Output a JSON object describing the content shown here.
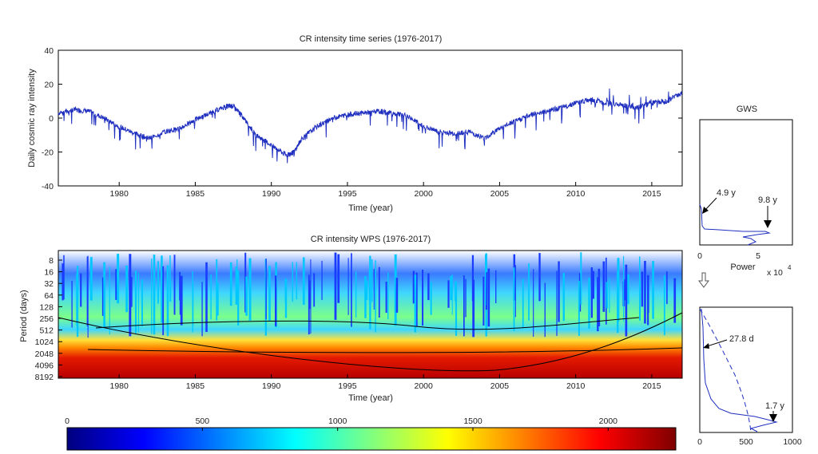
{
  "chart_data": [
    {
      "type": "line",
      "title": "CR intensity time series (1976-2017)",
      "xlabel": "Time (year)",
      "ylabel": "Daily cosmic ray intensity",
      "xlim": [
        1976,
        2017
      ],
      "ylim": [
        -40,
        40
      ],
      "xticks": [
        1980,
        1985,
        1990,
        1995,
        2000,
        2005,
        2010,
        2015
      ],
      "yticks": [
        40,
        20,
        0,
        -20,
        -40
      ],
      "grid": false,
      "color": "#1f2fbf",
      "series": [
        {
          "x": [
            1976,
            1977,
            1978,
            1979,
            1980,
            1981,
            1982,
            1983,
            1984,
            1985,
            1986,
            1987,
            1987.5,
            1988,
            1989,
            1990,
            1991,
            1991.5,
            1992,
            1993,
            1994,
            1995,
            1996,
            1997,
            1998,
            1999,
            2000,
            2001,
            2002,
            2003,
            2004,
            2005,
            2006,
            2007,
            2008,
            2009,
            2010,
            2011,
            2012,
            2013,
            2014,
            2015,
            2016,
            2017
          ],
          "values": [
            3,
            5,
            4,
            0,
            -5,
            -9,
            -12,
            -8,
            -6,
            -1,
            3,
            7,
            7,
            2,
            -10,
            -16,
            -22,
            -20,
            -12,
            -5,
            0,
            2,
            3,
            4,
            3,
            1,
            -5,
            -8,
            -9,
            -8,
            -12,
            -6,
            -2,
            2,
            4,
            6,
            9,
            11,
            9,
            8,
            6,
            9,
            10,
            15
          ]
        }
      ]
    },
    {
      "type": "heatmap",
      "title": "CR intensity WPS (1976-2017)",
      "xlabel": "Time (year)",
      "ylabel": "Period (days)",
      "xlim": [
        1976,
        2017
      ],
      "xticks": [
        1980,
        1985,
        1990,
        1995,
        2000,
        2005,
        2010,
        2015
      ],
      "yticks": [
        8,
        16,
        32,
        64,
        128,
        256,
        512,
        1024,
        2048,
        4096,
        8192
      ],
      "colorbar": {
        "range": [
          0,
          2250
        ],
        "ticks": [
          0,
          500,
          1000,
          1500,
          2000
        ],
        "colormap": "jet"
      }
    },
    {
      "type": "line",
      "title": "GWS",
      "xlabel": "Power",
      "x_exponent_label": "x 10",
      "x_exponent": "4",
      "xlim": [
        0,
        8
      ],
      "xticks": [
        0,
        5
      ],
      "annotations": [
        "4.9 y",
        "9.8 y"
      ]
    },
    {
      "type": "line",
      "xlim": [
        0,
        1000
      ],
      "xticks": [
        0,
        500,
        1000
      ],
      "annotations": [
        "27.8 d",
        "1.7 y"
      ]
    }
  ]
}
